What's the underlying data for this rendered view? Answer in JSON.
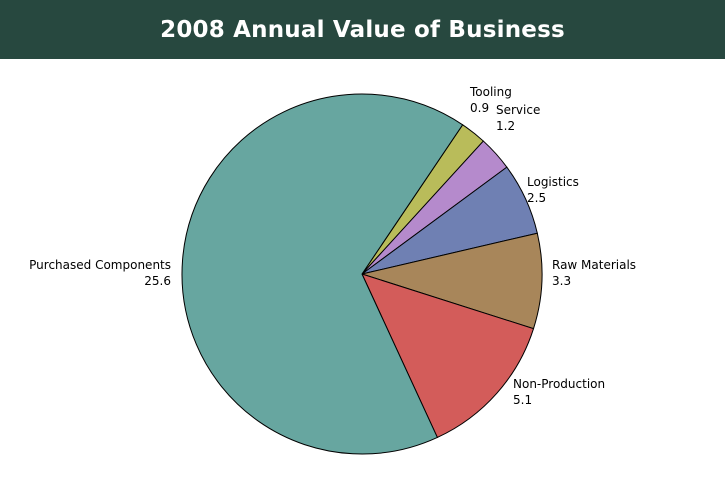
{
  "header": {
    "title": "2008 Annual Value of Business"
  },
  "colors": {
    "banner_bg": "#27483f",
    "banner_text": "#ffffff",
    "slice_outline": "#000000"
  },
  "chart_data": {
    "type": "pie",
    "title": "2008 Annual Value of Business",
    "slices": [
      {
        "label": "Purchased Components",
        "value": 25.6,
        "display": "25.6",
        "color": "#67a6a0"
      },
      {
        "label": "Tooling",
        "value": 0.9,
        "display": "0.9",
        "color": "#b9bc5a"
      },
      {
        "label": "Service",
        "value": 1.2,
        "display": "1.2",
        "color": "#b58acc"
      },
      {
        "label": "Logistics",
        "value": 2.5,
        "display": "2.5",
        "color": "#6f80b3"
      },
      {
        "label": "Raw Materials",
        "value": 3.3,
        "display": "3.3",
        "color": "#a8865a"
      },
      {
        "label": "Non-Production",
        "value": 5.1,
        "display": "5.1",
        "color": "#d35c5a"
      }
    ],
    "legend": "none",
    "labels": "outside"
  }
}
